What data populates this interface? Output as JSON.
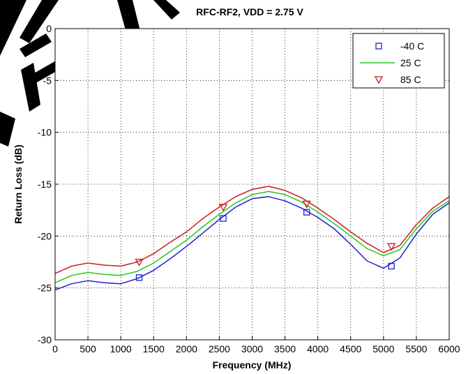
{
  "chart_data": {
    "type": "line",
    "title": "RFC-RF2, VDD = 2.75 V",
    "xlabel": "Frequency (MHz)",
    "ylabel": "Return Loss (dB)",
    "xlim": [
      0,
      6000
    ],
    "ylim": [
      -30,
      0
    ],
    "xticks": [
      "0",
      "500",
      "1000",
      "1500",
      "2000",
      "2500",
      "3000",
      "3500",
      "4000",
      "4500",
      "5000",
      "5500",
      "6000"
    ],
    "yticks": [
      "0",
      "-5",
      "-10",
      "-15",
      "-20",
      "-25",
      "-30"
    ],
    "grid": true,
    "legend_position": "top-right",
    "x": [
      0,
      250,
      500,
      750,
      1000,
      1250,
      1500,
      1750,
      2000,
      2250,
      2500,
      2750,
      3000,
      3250,
      3500,
      3750,
      4000,
      4250,
      4500,
      4750,
      5000,
      5250,
      5500,
      5750,
      6000
    ],
    "series": [
      {
        "name": "-40 C",
        "color": "#1f1fd0",
        "marker": "square",
        "values": [
          -25.2,
          -24.6,
          -24.3,
          -24.5,
          -24.6,
          -24.1,
          -23.3,
          -22.2,
          -21.0,
          -19.7,
          -18.4,
          -17.2,
          -16.4,
          -16.2,
          -16.6,
          -17.3,
          -18.2,
          -19.3,
          -20.8,
          -22.4,
          -23.1,
          -22.1,
          -19.8,
          -17.9,
          -16.8
        ],
        "marker_x": [
          1280,
          2560,
          3830,
          5120
        ],
        "marker_y": [
          -24.0,
          -18.3,
          -17.7,
          -22.9
        ]
      },
      {
        "name": "25 C",
        "color": "#22c822",
        "marker": "none",
        "values": [
          -24.5,
          -23.8,
          -23.5,
          -23.7,
          -23.8,
          -23.4,
          -22.6,
          -21.5,
          -20.4,
          -19.1,
          -17.9,
          -16.8,
          -16.0,
          -15.7,
          -16.0,
          -16.7,
          -17.7,
          -18.8,
          -20.0,
          -21.2,
          -21.9,
          -21.3,
          -19.3,
          -17.6,
          -16.6
        ],
        "marker_x": [],
        "marker_y": []
      },
      {
        "name": "85 C",
        "color": "#c81e1e",
        "marker": "triangle-down",
        "values": [
          -23.6,
          -22.9,
          -22.6,
          -22.8,
          -22.9,
          -22.5,
          -21.7,
          -20.6,
          -19.6,
          -18.3,
          -17.2,
          -16.2,
          -15.5,
          -15.2,
          -15.6,
          -16.3,
          -17.3,
          -18.4,
          -19.6,
          -20.7,
          -21.6,
          -20.9,
          -18.9,
          -17.3,
          -16.2
        ],
        "marker_x": [
          1280,
          2560,
          3830,
          5120
        ],
        "marker_y": [
          -22.5,
          -17.2,
          -16.9,
          -21.0
        ]
      }
    ]
  }
}
